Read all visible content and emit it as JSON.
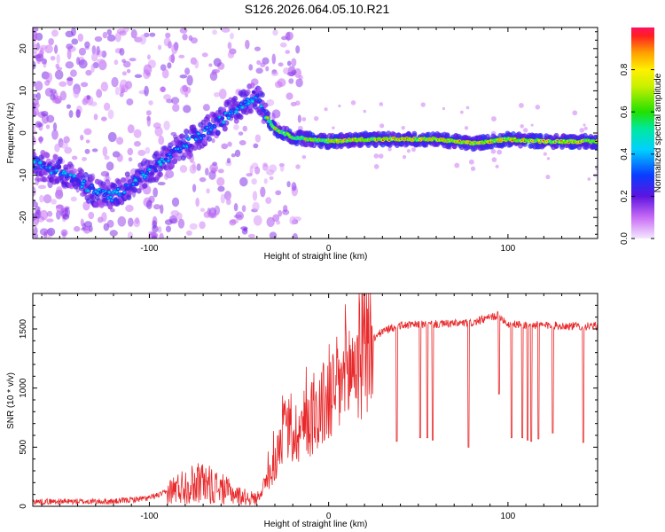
{
  "title": "S126.2026.064.05.10.R21",
  "chart_data": [
    {
      "type": "heatmap",
      "xlabel": "Height of straight line (km)",
      "ylabel": "Frequency (Hz)",
      "xlim": [
        -165,
        150
      ],
      "ylim": [
        -25,
        25
      ],
      "xticks": [
        -100,
        0,
        100
      ],
      "yticks": [
        -20,
        -10,
        0,
        10,
        20
      ],
      "colorbar": {
        "label": "Normalized spectral amplitude",
        "range": [
          0,
          1
        ],
        "ticks": [
          0.0,
          0.2,
          0.4,
          0.6,
          0.8
        ]
      },
      "ridge": {
        "description_points_x": [
          -165,
          -150,
          -130,
          -120,
          -100,
          -80,
          -60,
          -45,
          -40,
          -35,
          -30,
          -20,
          0,
          20,
          40,
          60,
          80,
          100,
          120,
          150
        ],
        "description_points_y": [
          -7,
          -9,
          -14,
          -15,
          -9,
          -3,
          3,
          8,
          9,
          4,
          1,
          -1,
          -2,
          -1.5,
          -1.5,
          -1.5,
          -2.5,
          -1.5,
          -2,
          -2
        ]
      }
    },
    {
      "type": "line",
      "xlabel": "Height of straight line (km)",
      "ylabel": "SNR (10 * v/v)",
      "xlim": [
        -165,
        150
      ],
      "ylim": [
        0,
        1800
      ],
      "xticks": [
        -100,
        0,
        100
      ],
      "yticks": [
        0,
        500,
        1000,
        1500
      ],
      "color": "#e8282a",
      "envelope": {
        "x": [
          -165,
          -120,
          -100,
          -90,
          -80,
          -70,
          -60,
          -50,
          -40,
          -30,
          -25,
          -20,
          -10,
          0,
          10,
          20,
          30,
          40,
          60,
          80,
          95,
          100,
          120,
          150
        ],
        "y": [
          40,
          40,
          70,
          120,
          180,
          200,
          150,
          90,
          60,
          350,
          700,
          600,
          750,
          900,
          1100,
          1350,
          1480,
          1530,
          1540,
          1550,
          1620,
          1540,
          1530,
          1520
        ]
      },
      "dropouts": [
        {
          "x": 38,
          "y": 550
        },
        {
          "x": 51,
          "y": 580
        },
        {
          "x": 55,
          "y": 580
        },
        {
          "x": 58,
          "y": 560
        },
        {
          "x": 78,
          "y": 500
        },
        {
          "x": 95,
          "y": 950
        },
        {
          "x": 102,
          "y": 580
        },
        {
          "x": 108,
          "y": 580
        },
        {
          "x": 111,
          "y": 560
        },
        {
          "x": 113,
          "y": 550
        },
        {
          "x": 117,
          "y": 570
        },
        {
          "x": 125,
          "y": 620
        },
        {
          "x": 142,
          "y": 540
        }
      ]
    }
  ]
}
